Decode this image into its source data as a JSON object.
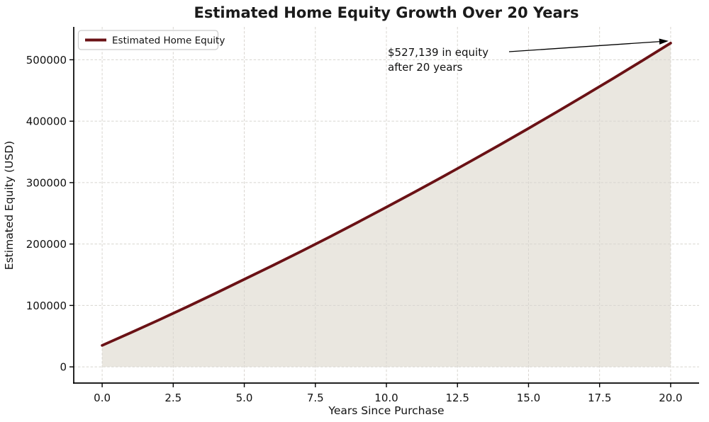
{
  "chart_data": {
    "type": "line",
    "title": "Estimated Home Equity Growth Over 20 Years",
    "xlabel": "Years Since Purchase",
    "ylabel": "Estimated Equity (USD)",
    "x": [
      0,
      1,
      2,
      3,
      4,
      5,
      6,
      7,
      8,
      9,
      10,
      11,
      12,
      13,
      14,
      15,
      16,
      17,
      18,
      19,
      20
    ],
    "series": [
      {
        "name": "Estimated Home Equity",
        "values": [
          35000,
          55500,
          76500,
          98000,
          120000,
          142500,
          165000,
          188000,
          211500,
          235500,
          260000,
          284800,
          310000,
          335700,
          361800,
          388300,
          415200,
          442600,
          470300,
          498500,
          527139
        ]
      }
    ],
    "xticks": [
      0,
      2.5,
      5,
      7.5,
      10,
      12.5,
      15,
      17.5,
      20
    ],
    "xtick_labels": [
      "0.0",
      "2.5",
      "5.0",
      "7.5",
      "10.0",
      "12.5",
      "15.0",
      "17.5",
      "20.0"
    ],
    "yticks": [
      0,
      100000,
      200000,
      300000,
      400000,
      500000
    ],
    "ytick_labels": [
      "0",
      "100000",
      "200000",
      "300000",
      "400000",
      "500000"
    ],
    "xlim": [
      -1,
      21
    ],
    "ylim": [
      -26357,
      553496
    ],
    "grid": true,
    "grid_style": "dashed",
    "fill_to_zero": true,
    "legend": {
      "position": "upper left",
      "label": "Estimated Home Equity"
    },
    "annotation": {
      "line1": "$527,139 in equity",
      "line2": "after 20 years",
      "target_x": 20,
      "target_y": 527139
    },
    "colors": {
      "line": "#6a1115",
      "fill": "#eae7e0",
      "grid": "#d8d5cf",
      "axes": "#000000",
      "text": "#111111",
      "arrow": "#000000",
      "legend_border": "#cccccc",
      "legend_background": "#ffffff",
      "background": "#ffffff"
    }
  }
}
